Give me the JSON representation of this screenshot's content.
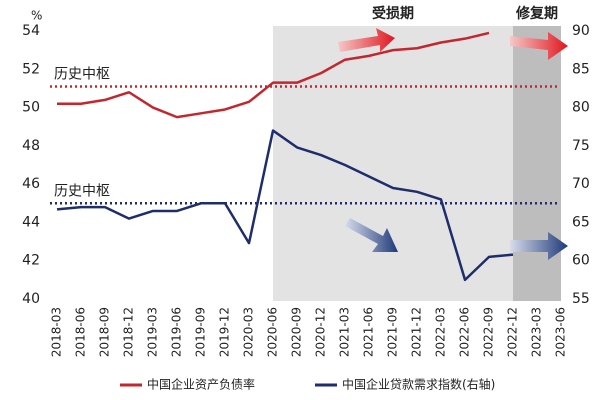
{
  "chart_data": {
    "type": "line",
    "y_unit_label": "%",
    "categories": [
      "2018-03",
      "2018-06",
      "2018-09",
      "2018-12",
      "2019-03",
      "2019-06",
      "2019-09",
      "2019-12",
      "2020-03",
      "2020-06",
      "2020-09",
      "2020-12",
      "2021-03",
      "2021-06",
      "2021-09",
      "2021-12",
      "2022-03",
      "2022-06",
      "2022-09",
      "2022-12",
      "2023-03",
      "2023-06"
    ],
    "series": [
      {
        "name": "中国企业资产负债率",
        "color": "#c4262e",
        "axis": "y",
        "values": [
          50.2,
          50.2,
          50.4,
          50.8,
          50.0,
          49.5,
          49.7,
          49.9,
          50.3,
          51.3,
          51.3,
          51.8,
          52.5,
          52.7,
          53.0,
          53.1,
          53.4,
          53.6,
          53.9,
          null,
          null,
          null
        ]
      },
      {
        "name": "中国企业贷款需求指数(右轴)",
        "color": "#1f2d6b",
        "axis": "y2",
        "values": [
          66.7,
          67.0,
          67.0,
          65.5,
          66.5,
          66.5,
          67.5,
          67.5,
          62.3,
          77.0,
          74.8,
          73.8,
          72.5,
          71.0,
          69.5,
          69.0,
          68.0,
          57.5,
          60.5,
          60.8,
          null,
          null
        ]
      }
    ],
    "ylim": [
      40,
      54
    ],
    "yticks": [
      40,
      42,
      44,
      46,
      48,
      50,
      52,
      54
    ],
    "y2lim": [
      55,
      90
    ],
    "y2ticks": [
      55,
      60,
      65,
      70,
      75,
      80,
      85,
      90
    ],
    "reference_lines": [
      {
        "label": "历史中枢",
        "value": 51.1,
        "axis": "y",
        "color": "#c4262e"
      },
      {
        "label": "历史中枢",
        "value": 45,
        "axis": "y",
        "color": "#1f2d6b"
      }
    ],
    "spans": [
      {
        "label": "受损期",
        "start": "2020-06",
        "end": "2022-12",
        "color": "#e3e3e3"
      },
      {
        "label": "修复期",
        "start": "2022-12",
        "end": "2023-06",
        "color": "#bdbdbd"
      }
    ]
  }
}
